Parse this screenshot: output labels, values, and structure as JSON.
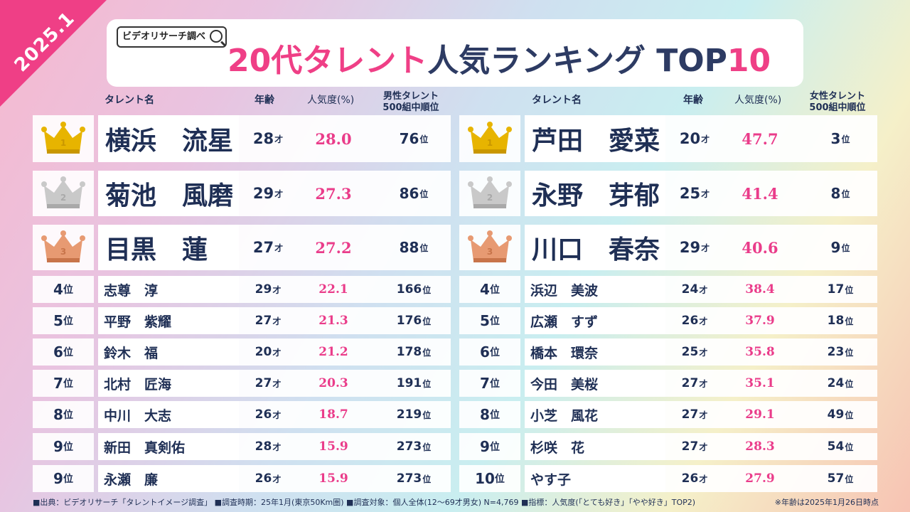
{
  "corner_label": "2025.1",
  "logo_text": "ビデオリサーチ調べ",
  "title": {
    "pink1": "20代タレント",
    "dark": "人気ランキング TOP",
    "pink2": "10"
  },
  "headers": {
    "name": "タレント名",
    "age": "年齢",
    "popularity": "人気度(%)",
    "male_rank_l1": "男性タレント",
    "male_rank_l2": "500組中順位",
    "female_rank_l1": "女性タレント",
    "female_rank_l2": "500組中順位"
  },
  "units": {
    "age": "才",
    "rank": "位"
  },
  "colors": {
    "accent": "#ef3f86",
    "navy": "#1f2f55",
    "gold": "#e7b400",
    "silver": "#c9c9c9",
    "bronze": "#e79a72"
  },
  "male": [
    {
      "rank": "1",
      "name": "横浜　流星",
      "age": "28",
      "pop": "28.0",
      "r500": "76"
    },
    {
      "rank": "2",
      "name": "菊池　風磨",
      "age": "29",
      "pop": "27.3",
      "r500": "86"
    },
    {
      "rank": "3",
      "name": "目黒　蓮",
      "age": "27",
      "pop": "27.2",
      "r500": "88"
    },
    {
      "rank": "4",
      "name": "志尊　淳",
      "age": "29",
      "pop": "22.1",
      "r500": "166"
    },
    {
      "rank": "5",
      "name": "平野　紫耀",
      "age": "27",
      "pop": "21.3",
      "r500": "176"
    },
    {
      "rank": "6",
      "name": "鈴木　福",
      "age": "20",
      "pop": "21.2",
      "r500": "178"
    },
    {
      "rank": "7",
      "name": "北村　匠海",
      "age": "27",
      "pop": "20.3",
      "r500": "191"
    },
    {
      "rank": "8",
      "name": "中川　大志",
      "age": "26",
      "pop": "18.7",
      "r500": "219"
    },
    {
      "rank": "9",
      "name": "新田　真剣佑",
      "age": "28",
      "pop": "15.9",
      "r500": "273"
    },
    {
      "rank": "9",
      "name": "永瀬　廉",
      "age": "26",
      "pop": "15.9",
      "r500": "273"
    }
  ],
  "female": [
    {
      "rank": "1",
      "name": "芦田　愛菜",
      "age": "20",
      "pop": "47.7",
      "r500": "3"
    },
    {
      "rank": "2",
      "name": "永野　芽郁",
      "age": "25",
      "pop": "41.4",
      "r500": "8"
    },
    {
      "rank": "3",
      "name": "川口　春奈",
      "age": "29",
      "pop": "40.6",
      "r500": "9"
    },
    {
      "rank": "4",
      "name": "浜辺　美波",
      "age": "24",
      "pop": "38.4",
      "r500": "17"
    },
    {
      "rank": "5",
      "name": "広瀬　すず",
      "age": "26",
      "pop": "37.9",
      "r500": "18"
    },
    {
      "rank": "6",
      "name": "橋本　環奈",
      "age": "25",
      "pop": "35.8",
      "r500": "23"
    },
    {
      "rank": "7",
      "name": "今田　美桜",
      "age": "27",
      "pop": "35.1",
      "r500": "24"
    },
    {
      "rank": "8",
      "name": "小芝　風花",
      "age": "27",
      "pop": "29.1",
      "r500": "49"
    },
    {
      "rank": "9",
      "name": "杉咲　花",
      "age": "27",
      "pop": "28.3",
      "r500": "54"
    },
    {
      "rank": "10",
      "name": "やす子",
      "age": "26",
      "pop": "27.9",
      "r500": "57"
    }
  ],
  "footer": "■出典：ビデオリサーチ「タレントイメージ調査」 ■調査時期：25年1月(東京50Km圏) ■調査対象：個人全体(12～69才男女) N=4,769 ■指標：人気度(「とても好き」「やや好き」TOP2)",
  "footer_right": "※年齢は2025年1月26日時点"
}
